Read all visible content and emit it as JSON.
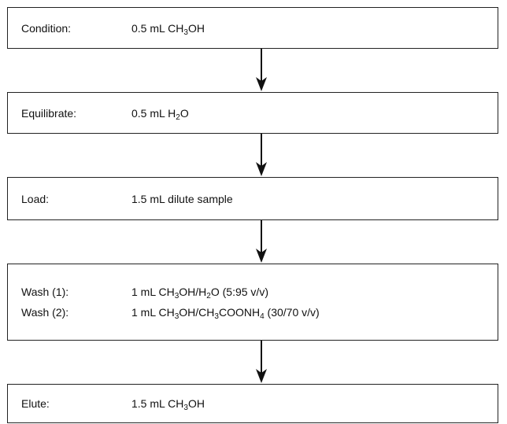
{
  "steps": [
    {
      "lines": [
        {
          "label": "Condition:",
          "content": [
            {
              "text": "0.5 mL CH"
            },
            {
              "sub": "3"
            },
            {
              "text": "OH"
            }
          ]
        }
      ]
    },
    {
      "lines": [
        {
          "label": "Equilibrate:",
          "content": [
            {
              "text": "0.5 mL H"
            },
            {
              "sub": "2"
            },
            {
              "text": "O"
            }
          ]
        }
      ]
    },
    {
      "lines": [
        {
          "label": "Load:",
          "content": [
            {
              "text": "1.5 mL dilute sample"
            }
          ]
        }
      ]
    },
    {
      "lines": [
        {
          "label": "Wash (1):",
          "content": [
            {
              "text": "1 mL CH"
            },
            {
              "sub": "3"
            },
            {
              "text": "OH/H"
            },
            {
              "sub": "2"
            },
            {
              "text": "O (5:95 v/v)"
            }
          ]
        },
        {
          "label": "Wash (2):",
          "content": [
            {
              "text": "1 mL CH"
            },
            {
              "sub": "3"
            },
            {
              "text": "OH/CH"
            },
            {
              "sub": "3"
            },
            {
              "text": "COONH"
            },
            {
              "sub": "4"
            },
            {
              "text": " (30/70 v/v)"
            }
          ]
        }
      ]
    },
    {
      "lines": [
        {
          "label": "Elute:",
          "content": [
            {
              "text": "1.5 mL CH"
            },
            {
              "sub": "3"
            },
            {
              "text": "OH"
            }
          ]
        }
      ]
    }
  ]
}
